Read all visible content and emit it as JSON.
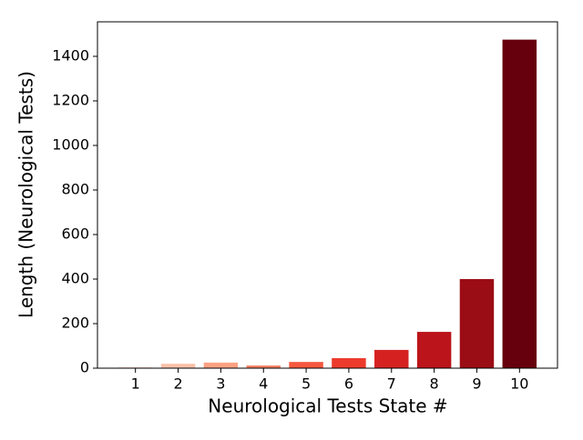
{
  "chart_data": {
    "type": "bar",
    "x_label": "Neurological Tests State #",
    "y_label": "Length (Neurological Tests)",
    "categories": [
      "1",
      "2",
      "3",
      "4",
      "5",
      "6",
      "7",
      "8",
      "9",
      "10"
    ],
    "values": [
      5,
      20,
      25,
      12,
      28,
      45,
      82,
      163,
      400,
      1475
    ],
    "colors": [
      "#fee2d5",
      "#fcc2aa",
      "#fca183",
      "#fc8262",
      "#f6583e",
      "#ec3b2c",
      "#d52221",
      "#bb141a",
      "#9b0d14",
      "#67000d"
    ],
    "ylim": [
      0,
      1555
    ],
    "yticks": [
      0,
      200,
      400,
      600,
      800,
      1000,
      1200,
      1400
    ]
  }
}
